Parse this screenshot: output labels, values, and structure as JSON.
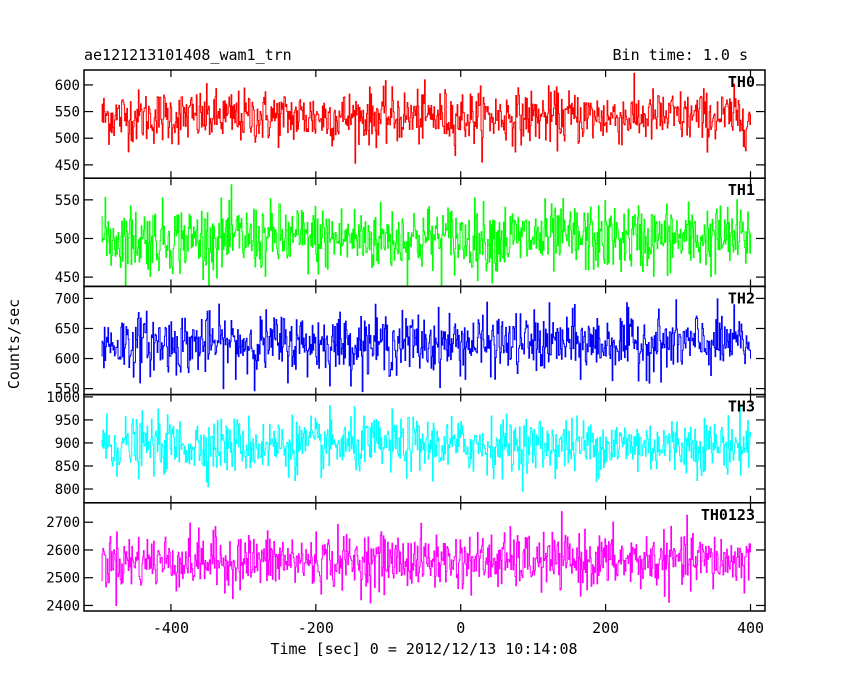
{
  "chart_data": {
    "type": "line",
    "title": "ae121213101408_wam1_trn",
    "subtitle": "Bin time: 1.0 s",
    "xlabel": "Time [sec] 0 = 2012/12/13 10:14:08",
    "ylabel": "Counts/sec",
    "xlim": [
      -520,
      420
    ],
    "x_ticks": [
      -400,
      -200,
      0,
      200,
      400
    ],
    "x_range_data": [
      -496,
      400
    ],
    "grid": false,
    "panels": [
      {
        "name": "TH0",
        "color": "#ff0000",
        "ylim": [
          425,
          628
        ],
        "y_ticks": [
          450,
          500,
          550,
          600
        ],
        "mean": 540,
        "sd": 25,
        "min": 430,
        "max": 628
      },
      {
        "name": "TH1",
        "color": "#00ff00",
        "ylim": [
          438,
          578
        ],
        "y_ticks": [
          450,
          500,
          550
        ],
        "mean": 500,
        "sd": 22,
        "min": 438,
        "max": 578
      },
      {
        "name": "TH2",
        "color": "#0000ff",
        "ylim": [
          540,
          720
        ],
        "y_ticks": [
          550,
          600,
          650,
          700
        ],
        "mean": 625,
        "sd": 25,
        "min": 545,
        "max": 720
      },
      {
        "name": "TH3",
        "color": "#00ffff",
        "ylim": [
          770,
          1005
        ],
        "y_ticks": [
          800,
          850,
          900,
          950,
          1000
        ],
        "mean": 895,
        "sd": 30,
        "min": 785,
        "max": 1000
      },
      {
        "name": "TH0123",
        "color": "#ff00ff",
        "ylim": [
          2380,
          2770
        ],
        "y_ticks": [
          2400,
          2500,
          2600,
          2700
        ],
        "mean": 2560,
        "sd": 50,
        "min": 2400,
        "max": 2760
      }
    ]
  }
}
